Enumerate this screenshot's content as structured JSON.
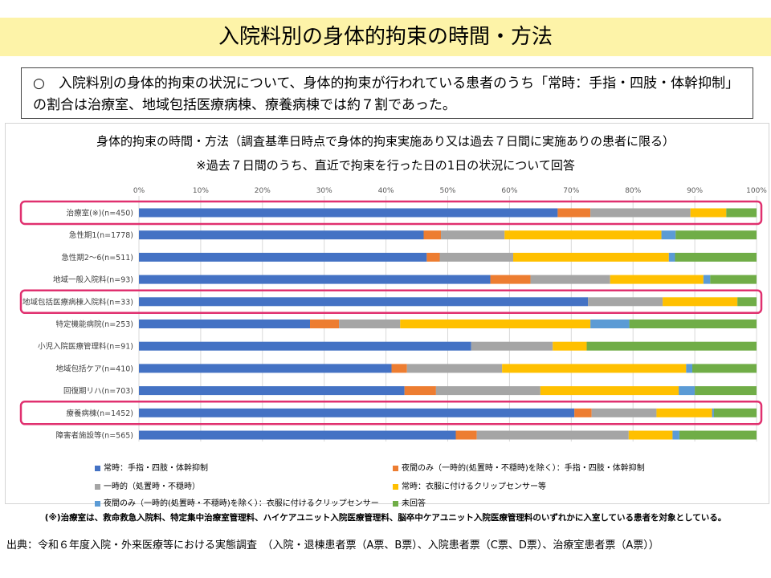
{
  "page": {
    "title": "入院料別の身体的拘束の時間・方法",
    "summary": "○　入院料別の身体的拘束の状況について、身体的拘束が行われている患者のうち「常時：手指・四肢・体幹抑制」の割合は治療室、地域包括医療病棟、療養病棟では約７割であった。",
    "footnote": "(※)治療室は、救命救急入院料、特定集中治療室管理料、ハイケアユニット入院医療管理料、脳卒中ケアユニット入院医療管理料のいずれかに入室している患者を対象としている。",
    "source": "出典：令和６年度入院・外来医療等における実態調査　（入院・退棟患者票（A票、B票）、入院患者票（C票、D票）、治療室患者票（A票））"
  },
  "chart_data": {
    "type": "bar",
    "orientation": "horizontal",
    "stacked": true,
    "title": "身体的拘束の時間・方法（調査基準日時点で身体的拘束実施あり又は過去７日間に実施ありの患者に限る）",
    "subtitle": "※過去７日間のうち、直近で拘束を行った日の1日の状況について回答",
    "xlim": [
      0,
      100
    ],
    "x_ticks": [
      "0%",
      "10%",
      "20%",
      "30%",
      "40%",
      "50%",
      "60%",
      "70%",
      "80%",
      "90%",
      "100%"
    ],
    "grid": true,
    "legend_position": "bottom",
    "categories": [
      "治療室(※)(n=450)",
      "急性期1(n=1778)",
      "急性期2～6(n=511)",
      "地域一般入院料(n=93)",
      "地域包括医療病棟入院料(n=33)",
      "特定機能病院(n=253)",
      "小児入院医療管理料(n=91)",
      "地域包括ケア(n=410)",
      "回復期リハ(n=703)",
      "療養病棟(n=1452)",
      "障害者施設等(n=565)"
    ],
    "highlighted": [
      "治療室(※)(n=450)",
      "地域包括医療病棟入院料(n=33)",
      "療養病棟(n=1452)"
    ],
    "series": [
      {
        "name": "常時：手指・四肢・体幹抑制",
        "color": "#4472c4",
        "values": [
          67.8,
          46.1,
          46.6,
          56.9,
          72.7,
          27.7,
          53.8,
          40.9,
          43.0,
          70.5,
          51.3
        ]
      },
      {
        "name": "夜間のみ（一時的(処置時・不穏時)を除く）：手指・四肢・体幹抑制",
        "color": "#ed7d31",
        "values": [
          5.3,
          2.8,
          2.1,
          6.5,
          0.0,
          4.7,
          0.0,
          2.5,
          5.1,
          2.8,
          3.4
        ]
      },
      {
        "name": "一時的（処置時・不穏時）",
        "color": "#a5a5a5",
        "values": [
          16.2,
          10.3,
          11.9,
          12.9,
          12.1,
          9.9,
          13.2,
          15.4,
          16.9,
          10.5,
          24.6
        ]
      },
      {
        "name": "常時：衣服に付けるクリップセンサー等",
        "color": "#ffc000",
        "values": [
          5.8,
          25.4,
          25.2,
          15.1,
          12.1,
          30.8,
          5.5,
          29.8,
          22.4,
          9.0,
          7.1
        ]
      },
      {
        "name": "夜間のみ（一時的(処置時・不穏時)を除く）：衣服に付けるクリップセンサー",
        "color": "#5b9bd5",
        "values": [
          0.0,
          2.3,
          1.0,
          1.1,
          0.0,
          6.3,
          0.0,
          1.0,
          2.6,
          0.3,
          1.1
        ]
      },
      {
        "name": "未回答",
        "color": "#70ad47",
        "values": [
          4.9,
          13.1,
          13.2,
          7.5,
          3.1,
          20.6,
          27.5,
          10.4,
          10.0,
          6.9,
          12.5
        ]
      }
    ]
  }
}
